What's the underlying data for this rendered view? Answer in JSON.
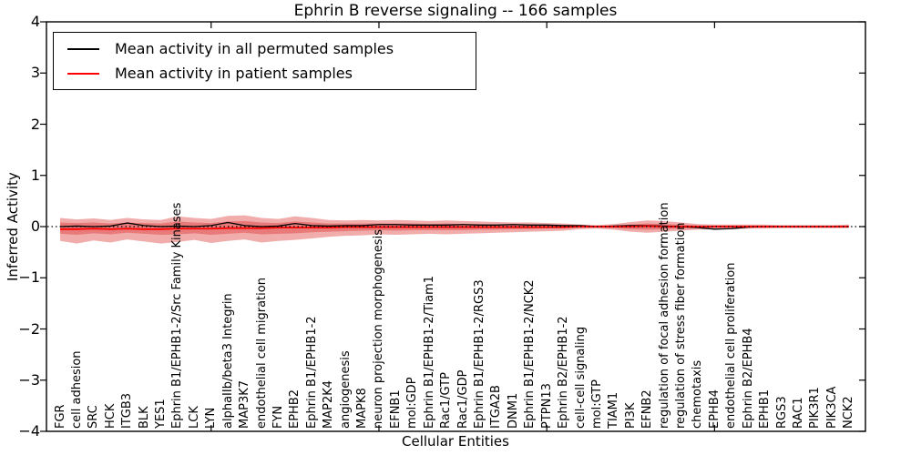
{
  "title": "Ephrin B reverse signaling -- 166 samples",
  "legend": {
    "items": [
      {
        "label": "Mean activity in all permuted samples",
        "color": "#000000"
      },
      {
        "label": "Mean activity in patient samples",
        "color": "#ff0000"
      }
    ]
  },
  "axes": {
    "ylabel": "Inferred Activity",
    "xlabel": "Cellular Entities",
    "yticks": [
      "4",
      "3",
      "2",
      "1",
      "0",
      "−1",
      "−2",
      "−3",
      "−4"
    ],
    "ytick_values": [
      4,
      3,
      2,
      1,
      0,
      -1,
      -2,
      -3,
      -4
    ],
    "ylim": [
      -4,
      4
    ]
  },
  "colors": {
    "band_fill": "#db3030",
    "band_opacity": 0.4,
    "permuted_line": "#000000",
    "patient_line": "#ff0000",
    "zero_line": "#000000"
  },
  "chart_data": {
    "type": "line",
    "title": "Ephrin B reverse signaling -- 166 samples",
    "xlabel": "Cellular Entities",
    "ylabel": "Inferred Activity",
    "ylim": [
      -4,
      4
    ],
    "grid": false,
    "legend_position": "upper left",
    "zero_line": true,
    "x_categories": [
      "FGR",
      "cell adhesion",
      "SRC",
      "HCK",
      "ITGB3",
      "BLK",
      "YES1",
      "Ephrin B1/EPHB1-2/Src Family Kinases",
      "LCK",
      "LYN",
      "alphaIIb/beta3 Integrin",
      "MAP3K7",
      "endothelial cell migration",
      "FYN",
      "EPHB2",
      "Ephrin B1/EPHB1-2",
      "MAP2K4",
      "angiogenesis",
      "MAPK8",
      "neuron projection morphogenesis",
      "EFNB1",
      "mol:GDP",
      "Ephrin B1/EPHB1-2/Tiam1",
      "Rac1/GTP",
      "Rac1/GDP",
      "Ephrin B1/EPHB1-2/RGS3",
      "ITGA2B",
      "DNM1",
      "Ephrin B1/EPHB1-2/NCK2",
      "PTPN13",
      "Ephrin B2/EPHB1-2",
      "cell-cell signaling",
      "mol:GTP",
      "TIAM1",
      "PI3K",
      "EFNB2",
      "regulation of focal adhesion formation",
      "regulation of stress fiber formation",
      "chemotaxis",
      "EPHB4",
      "endothelial cell proliferation",
      "Ephrin B2/EPHB4",
      "EPHB1",
      "RGS3",
      "RAC1",
      "PIK3R1",
      "PIK3CA",
      "NCK2"
    ],
    "series": [
      {
        "name": "Mean activity in all permuted samples",
        "color": "#000000",
        "values": [
          0.0,
          0.01,
          0.0,
          0.01,
          0.07,
          0.02,
          0.0,
          0.01,
          0.0,
          0.02,
          0.08,
          0.02,
          0.0,
          0.01,
          0.06,
          0.02,
          0.01,
          0.02,
          0.02,
          0.04,
          0.04,
          0.03,
          0.03,
          0.03,
          0.04,
          0.03,
          0.03,
          0.04,
          0.03,
          0.03,
          0.02,
          0.02,
          0.0,
          0.01,
          0.02,
          0.02,
          0.01,
          0.0,
          -0.02,
          -0.05,
          -0.04,
          -0.01,
          0.0,
          0.0,
          0.0,
          0.0,
          0.0,
          0.0
        ]
      },
      {
        "name": "Mean activity in patient samples",
        "color": "#ff0000",
        "values": [
          -0.05,
          -0.05,
          -0.04,
          -0.05,
          -0.04,
          -0.05,
          -0.05,
          -0.04,
          -0.04,
          -0.04,
          -0.03,
          -0.03,
          -0.03,
          -0.02,
          -0.02,
          -0.02,
          -0.02,
          -0.01,
          -0.01,
          -0.01,
          -0.01,
          -0.01,
          -0.01,
          -0.01,
          -0.01,
          -0.01,
          -0.01,
          -0.01,
          -0.01,
          -0.01,
          -0.01,
          0.0,
          0.0,
          0.0,
          0.0,
          0.01,
          0.0,
          0.0,
          0.0,
          0.0,
          0.0,
          0.0,
          0.0,
          0.0,
          0.0,
          0.0,
          0.0,
          0.0
        ]
      }
    ],
    "bands": [
      {
        "name": "outer-permutation-band",
        "upper": [
          0.17,
          0.14,
          0.16,
          0.13,
          0.17,
          0.14,
          0.13,
          0.2,
          0.17,
          0.15,
          0.21,
          0.22,
          0.17,
          0.15,
          0.2,
          0.17,
          0.13,
          0.12,
          0.13,
          0.12,
          0.13,
          0.12,
          0.11,
          0.12,
          0.11,
          0.1,
          0.09,
          0.08,
          0.08,
          0.07,
          0.06,
          0.04,
          0.03,
          0.05,
          0.09,
          0.12,
          0.11,
          0.08,
          0.05,
          0.04,
          0.04,
          0.04,
          0.04,
          0.03,
          0.03,
          0.03,
          0.03,
          0.04
        ],
        "lower": [
          -0.28,
          -0.33,
          -0.27,
          -0.31,
          -0.25,
          -0.29,
          -0.33,
          -0.3,
          -0.26,
          -0.32,
          -0.28,
          -0.25,
          -0.31,
          -0.28,
          -0.26,
          -0.23,
          -0.2,
          -0.18,
          -0.17,
          -0.15,
          -0.16,
          -0.15,
          -0.14,
          -0.15,
          -0.14,
          -0.13,
          -0.12,
          -0.11,
          -0.1,
          -0.09,
          -0.08,
          -0.05,
          -0.04,
          -0.06,
          -0.1,
          -0.12,
          -0.1,
          -0.08,
          -0.06,
          -0.05,
          -0.05,
          -0.04,
          -0.04,
          -0.03,
          -0.03,
          -0.03,
          -0.03,
          -0.03
        ]
      },
      {
        "name": "inner-permutation-band",
        "upper": [
          0.08,
          0.07,
          0.08,
          0.06,
          0.08,
          0.07,
          0.06,
          0.1,
          0.08,
          0.07,
          0.1,
          0.11,
          0.08,
          0.07,
          0.1,
          0.08,
          0.06,
          0.06,
          0.06,
          0.06,
          0.06,
          0.06,
          0.05,
          0.06,
          0.05,
          0.05,
          0.04,
          0.04,
          0.04,
          0.03,
          0.03,
          0.02,
          0.01,
          0.02,
          0.04,
          0.06,
          0.05,
          0.04,
          0.02,
          0.02,
          0.02,
          0.02,
          0.02,
          0.01,
          0.01,
          0.01,
          0.01,
          0.02
        ],
        "lower": [
          -0.14,
          -0.16,
          -0.13,
          -0.15,
          -0.12,
          -0.14,
          -0.16,
          -0.15,
          -0.13,
          -0.16,
          -0.14,
          -0.12,
          -0.15,
          -0.14,
          -0.13,
          -0.11,
          -0.1,
          -0.09,
          -0.08,
          -0.07,
          -0.08,
          -0.07,
          -0.07,
          -0.07,
          -0.07,
          -0.06,
          -0.06,
          -0.05,
          -0.05,
          -0.04,
          -0.04,
          -0.02,
          -0.02,
          -0.03,
          -0.05,
          -0.06,
          -0.05,
          -0.04,
          -0.03,
          -0.02,
          -0.02,
          -0.02,
          -0.02,
          -0.01,
          -0.01,
          -0.01,
          -0.01,
          -0.01
        ]
      }
    ]
  }
}
